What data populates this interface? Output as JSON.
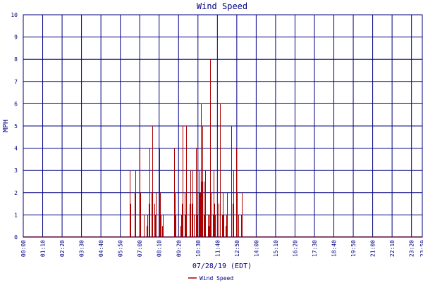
{
  "chart_data": {
    "type": "bar",
    "title": "Wind Speed",
    "xlabel": "07/28/19 (EDT)",
    "ylabel": "MPH",
    "ylim": [
      0,
      10
    ],
    "y_ticks": [
      "0",
      "1",
      "2",
      "3",
      "4",
      "5",
      "6",
      "7",
      "8",
      "9",
      "10"
    ],
    "x_ticks": [
      "00:00",
      "01:10",
      "02:20",
      "03:30",
      "04:40",
      "05:50",
      "07:00",
      "08:10",
      "09:20",
      "10:30",
      "11:40",
      "12:50",
      "14:00",
      "15:10",
      "16:20",
      "17:30",
      "18:40",
      "19:50",
      "21:00",
      "22:10",
      "23:20",
      "23:59"
    ],
    "x_range_minutes": [
      0,
      1439
    ],
    "grid": true,
    "legend_position": "bottom",
    "colors": {
      "series": "#aa0000",
      "grid": "#000080",
      "text": "#000080"
    },
    "series": [
      {
        "name": "Wind Speed",
        "x_minutes": [
          385,
          386,
          401,
          404,
          405,
          419,
          420,
          421,
          435,
          445,
          447,
          452,
          454,
          456,
          463,
          466,
          474,
          476,
          478,
          490,
          492,
          495,
          497,
          502,
          504,
          543,
          546,
          547,
          550,
          568,
          569,
          572,
          574,
          583,
          585,
          587,
          588,
          601,
          603,
          608,
          610,
          615,
          622,
          625,
          627,
          634,
          636,
          638,
          639,
          640,
          643,
          646,
          647,
          650,
          652,
          654,
          656,
          666,
          668,
          672,
          674,
          676,
          683,
          687,
          688,
          690,
          692,
          699,
          703,
          705,
          709,
          710,
          718,
          720,
          722,
          729,
          733,
          734,
          749,
          756,
          758,
          767,
          770,
          776,
          786,
          788
        ],
        "values": [
          3,
          1.5,
          2,
          1.5,
          3,
          4,
          2,
          2,
          1,
          0.5,
          1,
          1.5,
          4,
          2,
          2,
          5,
          1.5,
          1,
          2,
          4,
          2,
          0.5,
          1,
          0.5,
          1,
          4,
          2,
          2,
          1,
          0.5,
          1,
          1.5,
          5,
          2,
          1,
          5,
          2.5,
          1.5,
          3,
          1.5,
          3,
          1,
          4,
          1,
          2,
          2,
          3,
          2,
          1,
          6,
          2.5,
          1,
          5,
          0.5,
          2.5,
          1,
          3,
          1,
          0.5,
          1,
          8,
          2,
          1,
          3,
          1.5,
          1.5,
          1,
          3,
          1.5,
          1,
          6,
          2.5,
          1,
          2,
          1,
          0.5,
          1,
          2,
          5,
          1.5,
          3,
          4,
          2,
          1,
          1,
          2
        ]
      }
    ]
  }
}
